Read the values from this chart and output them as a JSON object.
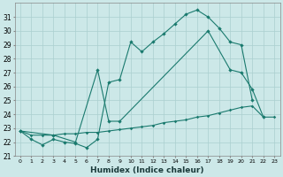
{
  "xlabel": "Humidex (Indice chaleur)",
  "x_values": [
    0,
    1,
    2,
    3,
    4,
    5,
    6,
    7,
    8,
    9,
    10,
    11,
    12,
    13,
    14,
    15,
    16,
    17,
    18,
    19,
    20,
    21,
    22,
    23
  ],
  "line1_x": [
    0,
    1,
    2,
    3,
    4,
    5,
    6,
    7,
    8,
    9,
    10,
    11,
    12,
    13,
    14,
    15,
    16,
    17,
    18,
    19,
    20,
    21
  ],
  "line1_y": [
    22.8,
    22.2,
    21.8,
    22.2,
    22.0,
    21.9,
    21.6,
    22.2,
    26.3,
    26.5,
    29.2,
    28.5,
    29.2,
    29.8,
    30.5,
    31.2,
    31.5,
    31.0,
    30.2,
    29.2,
    29.0,
    25.0
  ],
  "line2_x": [
    0,
    3,
    5,
    7,
    8,
    9,
    17,
    19,
    20,
    21,
    22
  ],
  "line2_y": [
    22.8,
    22.5,
    22.0,
    27.2,
    23.5,
    23.5,
    30.0,
    27.2,
    27.0,
    25.8,
    23.8
  ],
  "line3_x": [
    0,
    1,
    2,
    3,
    4,
    5,
    6,
    7,
    8,
    9,
    10,
    11,
    12,
    13,
    14,
    15,
    16,
    17,
    18,
    19,
    20,
    21,
    22,
    23
  ],
  "line3_y": [
    22.8,
    22.5,
    22.5,
    22.5,
    22.6,
    22.6,
    22.7,
    22.7,
    22.8,
    22.9,
    23.0,
    23.1,
    23.2,
    23.4,
    23.5,
    23.6,
    23.8,
    23.9,
    24.1,
    24.3,
    24.5,
    24.6,
    23.8,
    23.8
  ],
  "line_color": "#1a7a6e",
  "bg_color": "#cce8e8",
  "grid_color": "#aacfcf",
  "ylim": [
    21,
    32
  ],
  "yticks": [
    21,
    22,
    23,
    24,
    25,
    26,
    27,
    28,
    29,
    30,
    31
  ],
  "figsize": [
    3.2,
    2.0
  ],
  "dpi": 100
}
